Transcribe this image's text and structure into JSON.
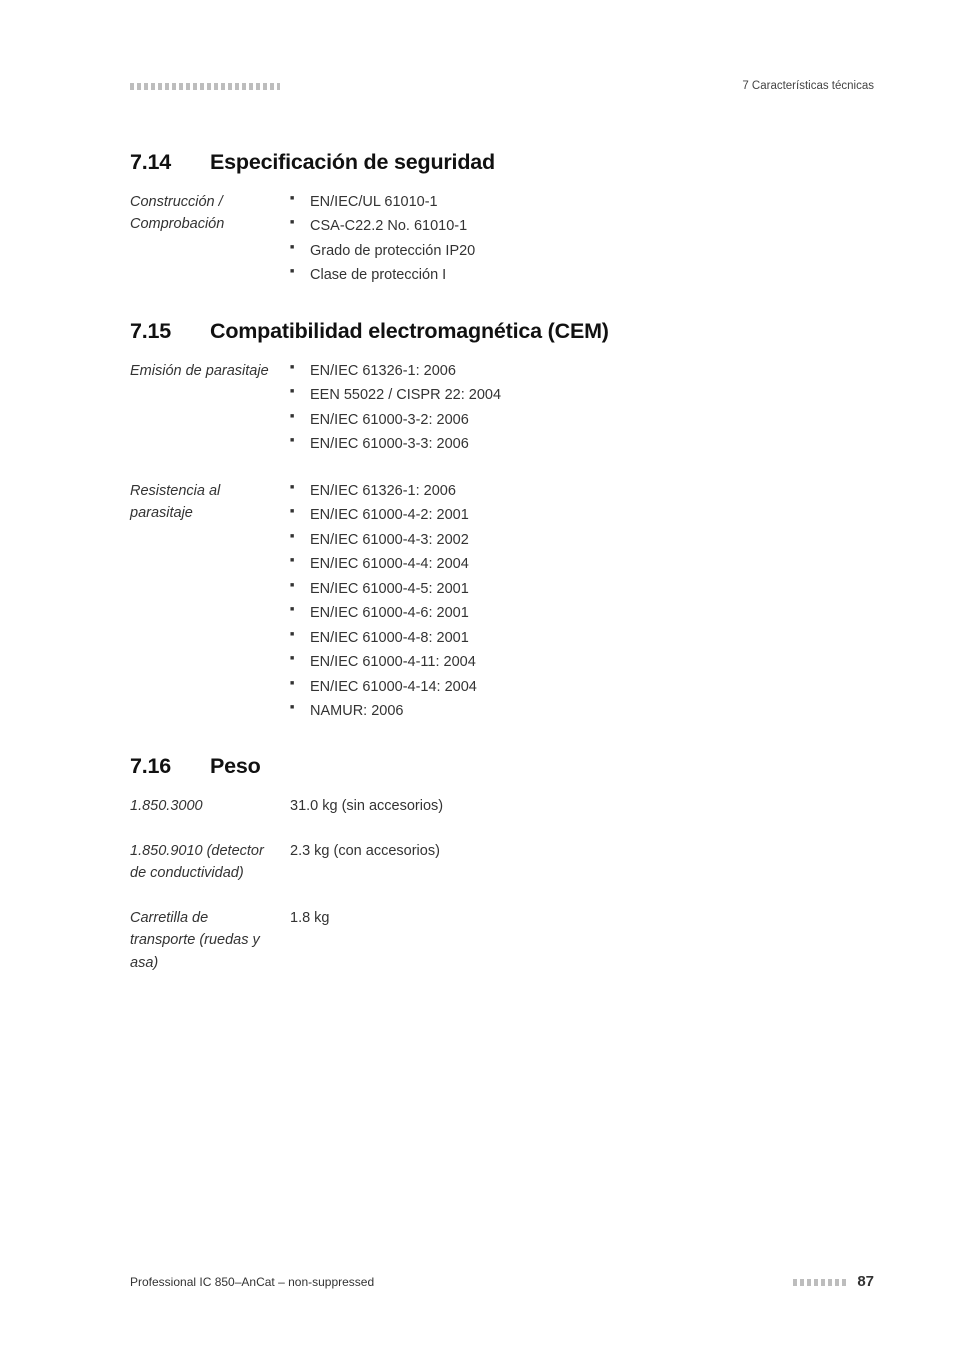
{
  "header": {
    "right": "7 Características técnicas"
  },
  "sections": [
    {
      "num": "7.14",
      "title": "Especificación de seguridad",
      "rows": [
        {
          "label": "Construcción / Comprobación",
          "type": "list",
          "items": [
            "EN/IEC/UL 61010-1",
            "CSA-C22.2 No. 61010-1",
            "Grado de protección IP20",
            "Clase de protección I"
          ]
        }
      ]
    },
    {
      "num": "7.15",
      "title": "Compatibilidad electromagnética (CEM)",
      "rows": [
        {
          "label": "Emisión de parasitaje",
          "type": "list",
          "items": [
            "EN/IEC 61326-1: 2006",
            "EEN 55022 / CISPR 22: 2004",
            "EN/IEC 61000-3-2: 2006",
            "EN/IEC 61000-3-3: 2006"
          ]
        },
        {
          "label": "Resistencia al parasitaje",
          "type": "list",
          "items": [
            "EN/IEC 61326-1: 2006",
            "EN/IEC 61000-4-2: 2001",
            "EN/IEC 61000-4-3: 2002",
            "EN/IEC 61000-4-4: 2004",
            "EN/IEC 61000-4-5: 2001",
            "EN/IEC 61000-4-6: 2001",
            "EN/IEC 61000-4-8: 2001",
            "EN/IEC 61000-4-11: 2004",
            "EN/IEC 61000-4-14: 2004",
            "NAMUR: 2006"
          ]
        }
      ]
    },
    {
      "num": "7.16",
      "title": "Peso",
      "rows": [
        {
          "label": "1.850.3000",
          "type": "text",
          "value": "31.0 kg (sin accesorios)"
        },
        {
          "label": "1.850.9010 (detector de conductividad)",
          "type": "text",
          "value": "2.3 kg (con accesorios)"
        },
        {
          "label": "Carretilla de transporte (ruedas y asa)",
          "type": "text",
          "value": "1.8 kg"
        }
      ]
    }
  ],
  "footer": {
    "left": "Professional IC 850–AnCat – non-suppressed",
    "page": "87"
  }
}
